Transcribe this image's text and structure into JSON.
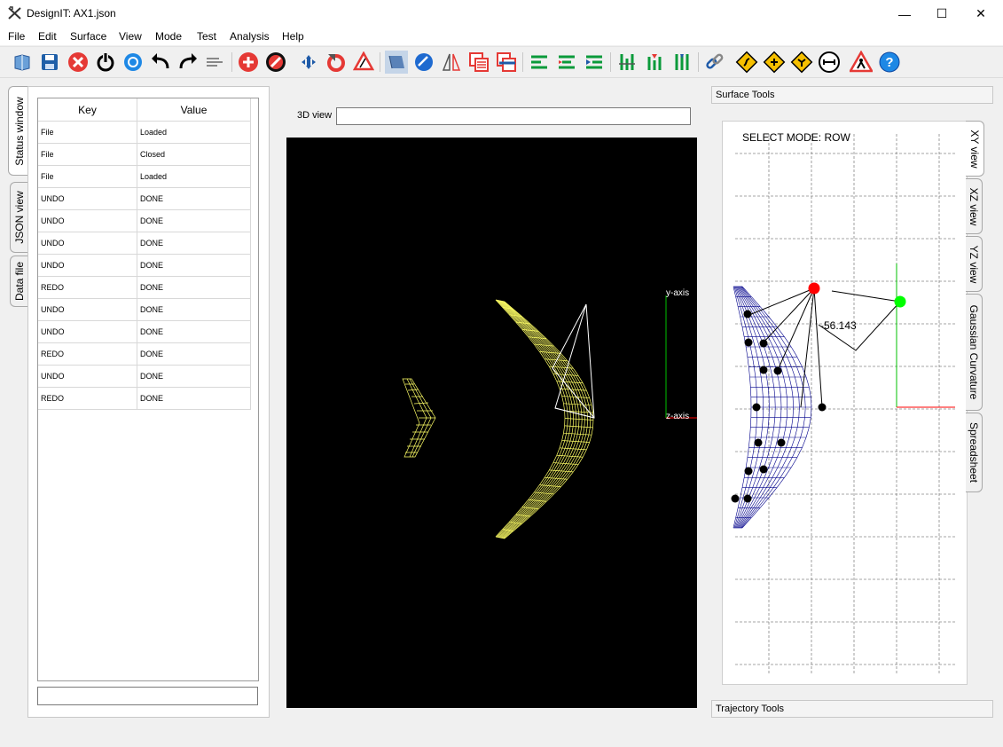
{
  "window": {
    "title": "DesignIT: AX1.json",
    "minimize": "—",
    "maximize": "☐",
    "close": "✕"
  },
  "menu": [
    "File",
    "Edit",
    "Surface",
    "View",
    "Mode",
    "Test",
    "Analysis",
    "Help"
  ],
  "toolbar_icons": [
    "open-file-icon",
    "save-icon",
    "close-file-icon",
    "power-icon",
    "settings-ring-icon",
    "undo-icon",
    "redo-icon",
    "wind-icon",
    "add-icon",
    "remove-icon",
    "move-icon",
    "rotate-icon",
    "angle-icon",
    "surface-shade-icon",
    "sphere-icon",
    "mirror-icon",
    "copy-rows-icon",
    "swap-rows-icon",
    "align-left-icon",
    "align-center-icon",
    "align-right-icon",
    "column-up-icon",
    "column-mid-icon",
    "column-down-icon",
    "link-icon",
    "curve-warning-icon",
    "cross-warning-icon",
    "junction-warning-icon",
    "measure-icon",
    "construction-icon",
    "help-icon"
  ],
  "left_tabs": [
    "Status window",
    "JSON view",
    "Data file"
  ],
  "status_table": {
    "headers": [
      "Key",
      "Value"
    ],
    "rows": [
      [
        "File",
        "Loaded"
      ],
      [
        "File",
        "Closed"
      ],
      [
        "File",
        "Loaded"
      ],
      [
        "UNDO",
        "DONE"
      ],
      [
        "UNDO",
        "DONE"
      ],
      [
        "UNDO",
        "DONE"
      ],
      [
        "UNDO",
        "DONE"
      ],
      [
        "REDO",
        "DONE"
      ],
      [
        "UNDO",
        "DONE"
      ],
      [
        "UNDO",
        "DONE"
      ],
      [
        "REDO",
        "DONE"
      ],
      [
        "UNDO",
        "DONE"
      ],
      [
        "REDO",
        "DONE"
      ]
    ]
  },
  "view3d": {
    "label": "3D view",
    "value": "",
    "y_axis": "y-axis",
    "z_axis": "z-axis"
  },
  "surface_tools": {
    "title": "Surface Tools"
  },
  "trajectory_tools": {
    "title": "Trajectory Tools"
  },
  "xy_view": {
    "mode_text": "SELECT MODE: ROW",
    "angle_label": "-56.143"
  },
  "right_tabs": [
    "XY view",
    "XZ view",
    "YZ view",
    "Gaussian Curvature",
    "Spreadsheet"
  ],
  "colors": {
    "wireframe": "#ffff66",
    "mesh": "#00008b",
    "selected_point": "#ff0000",
    "target_point": "#00ff00",
    "x_axis": "#ff0000",
    "y_axis": "#00c000"
  }
}
